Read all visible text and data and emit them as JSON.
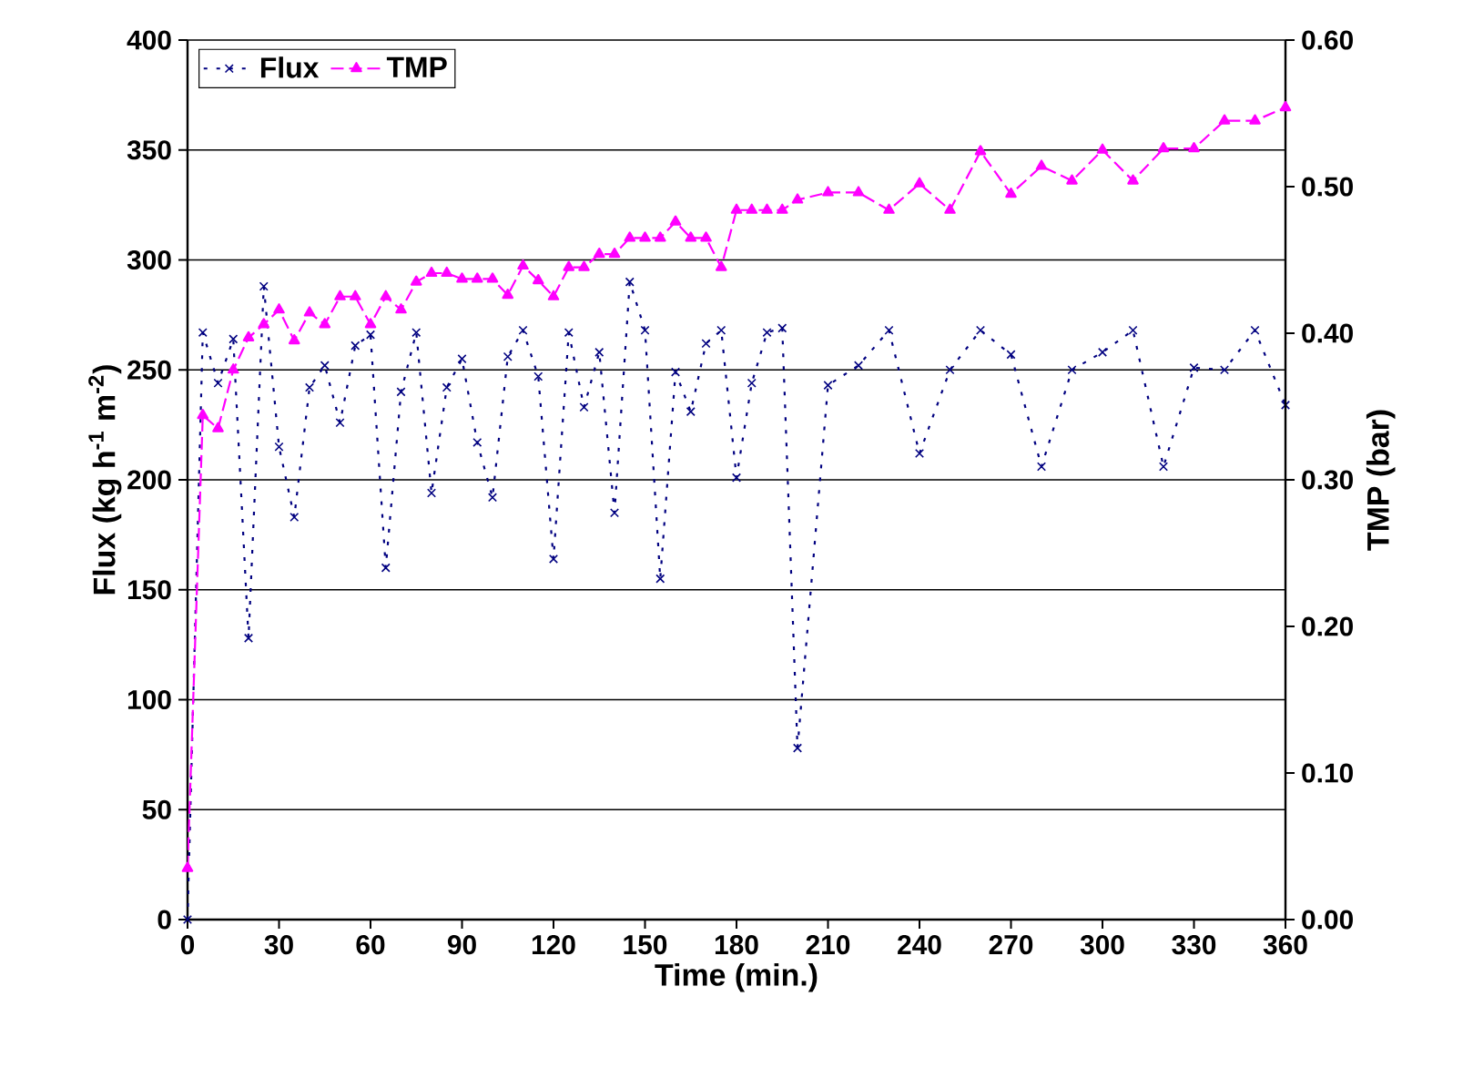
{
  "chart_data": {
    "type": "line",
    "xlabel": "Time (min.)",
    "ylabel": "Flux (kg h$^{-1}$ m$^{-2}$)",
    "y2label": "TMP (bar)",
    "x": [
      0,
      5,
      10,
      15,
      20,
      25,
      30,
      35,
      40,
      45,
      50,
      55,
      60,
      65,
      70,
      75,
      80,
      85,
      90,
      95,
      100,
      105,
      110,
      115,
      120,
      125,
      130,
      135,
      140,
      145,
      150,
      155,
      160,
      165,
      170,
      175,
      180,
      185,
      190,
      195,
      200,
      210,
      220,
      230,
      240,
      250,
      260,
      270,
      280,
      290,
      300,
      310,
      320,
      330,
      340,
      350,
      360
    ],
    "series": [
      {
        "name": "Flux",
        "color": "#000080",
        "marker": "cross",
        "line_style": "dotted",
        "values": [
          0,
          267,
          244,
          264,
          128,
          288,
          215,
          183,
          242,
          252,
          226,
          261,
          266,
          160,
          240,
          267,
          194,
          242,
          255,
          217,
          192,
          256,
          268,
          247,
          164,
          267,
          233,
          258,
          185,
          290,
          268,
          155,
          249,
          231,
          262,
          268,
          201,
          244,
          267,
          269,
          78,
          243,
          252,
          268,
          212,
          250,
          268,
          257,
          206,
          250,
          258,
          268,
          206,
          251,
          250,
          268,
          234
        ]
      },
      {
        "name": "TMP",
        "color": "#ff00ff",
        "marker": "triangle",
        "line_style": "dashed",
        "axis": "y2",
        "values": [
          0.035,
          0.344,
          0.335,
          0.375,
          0.397,
          0.406,
          0.416,
          0.395,
          0.414,
          0.406,
          0.425,
          0.425,
          0.406,
          0.425,
          0.416,
          0.435,
          0.441,
          0.441,
          0.437,
          0.437,
          0.437,
          0.426,
          0.446,
          0.436,
          0.425,
          0.445,
          0.445,
          0.454,
          0.454,
          0.465,
          0.465,
          0.465,
          0.476,
          0.465,
          0.465,
          0.445,
          0.484,
          0.484,
          0.484,
          0.484,
          0.491,
          0.496,
          0.496,
          0.484,
          0.502,
          0.484,
          0.524,
          0.495,
          0.514,
          0.504,
          0.525,
          0.504,
          0.526,
          0.526,
          0.545,
          0.545,
          0.554
        ]
      }
    ],
    "xlim": [
      0,
      360
    ],
    "xticks": [
      0,
      30,
      60,
      90,
      120,
      150,
      180,
      210,
      240,
      270,
      300,
      330,
      360
    ],
    "ylim": [
      0,
      400
    ],
    "yticks": [
      0,
      50,
      100,
      150,
      200,
      250,
      300,
      350,
      400
    ],
    "y2lim": [
      0,
      0.6
    ],
    "y2ticks": [
      {
        "value": 0,
        "label": "0.00"
      },
      {
        "value": 0.1,
        "label": "0.10"
      },
      {
        "value": 0.2,
        "label": "0.20"
      },
      {
        "value": 0.3,
        "label": "0.30"
      },
      {
        "value": 0.4,
        "label": "0.40"
      },
      {
        "value": 0.5,
        "label": "0.50"
      },
      {
        "value": 0.6,
        "label": "0.60"
      }
    ],
    "grid": "y",
    "legend": "top left"
  }
}
